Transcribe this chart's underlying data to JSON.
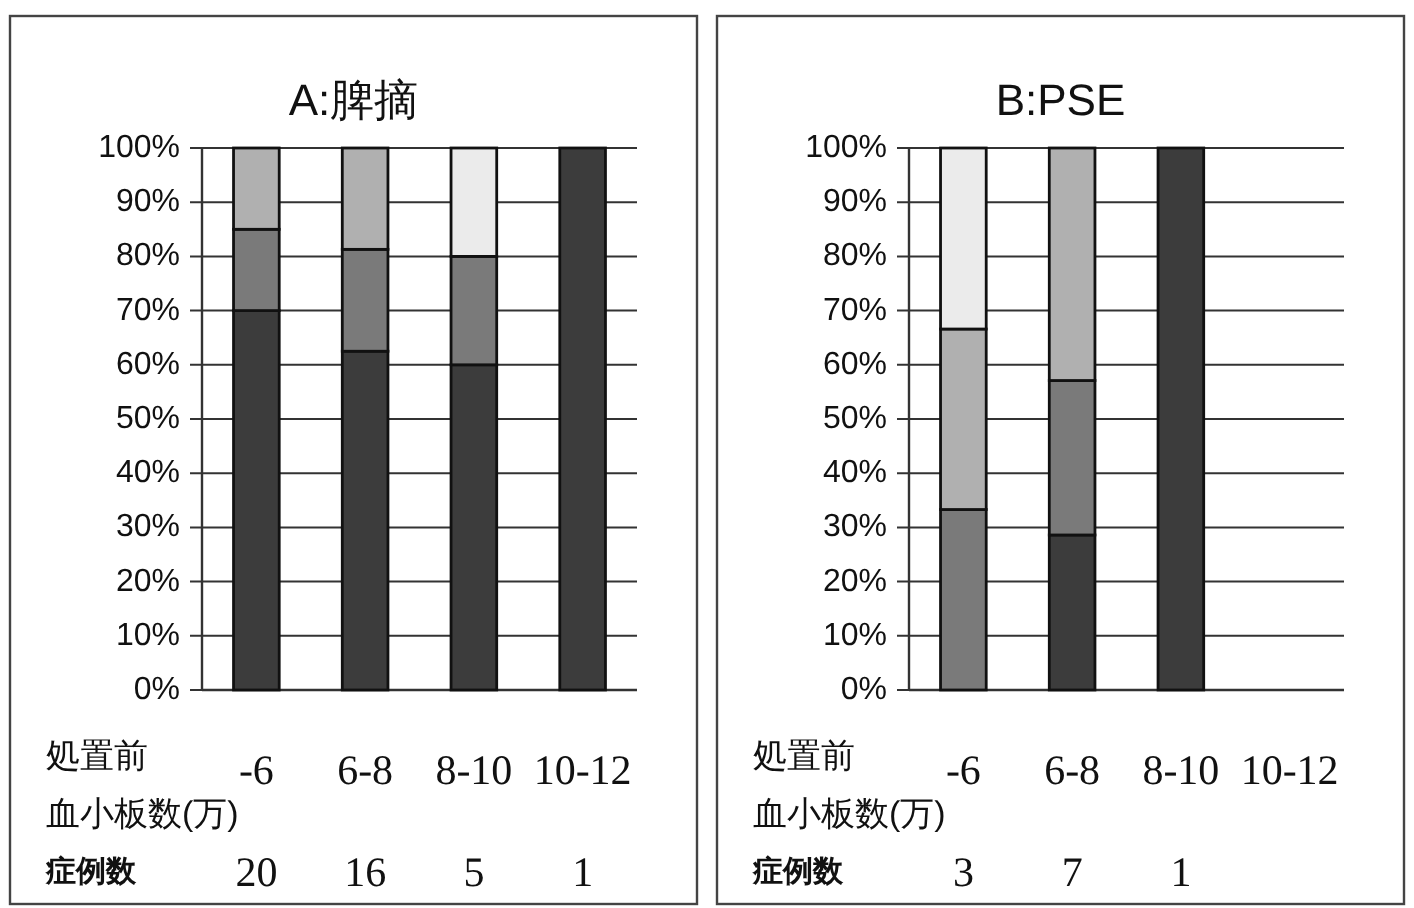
{
  "chart_data": [
    {
      "type": "bar",
      "title": "A:脾摘",
      "xlabel": "処置前血小板数(万)",
      "categories": [
        "-6",
        "6-8",
        "8-10",
        "10-12"
      ],
      "stacked": true,
      "series": [
        {
          "values": [
            70,
            62.5,
            60,
            100
          ],
          "colors": [
            "#3c3c3c",
            "#3c3c3c",
            "#3c3c3c",
            "#3c3c3c"
          ]
        },
        {
          "values": [
            15,
            18.8,
            20,
            null
          ],
          "colors": [
            "#7a7a7a",
            "#7a7a7a",
            "#7a7a7a",
            null
          ]
        },
        {
          "values": [
            15,
            18.7,
            20,
            null
          ],
          "colors": [
            "#b0b0b0",
            "#b0b0b0",
            "#ebebeb",
            null
          ]
        }
      ],
      "ylim": [
        0,
        100
      ],
      "yticks": [
        {
          "value": 0,
          "label": "0%"
        },
        {
          "value": 10,
          "label": "10%"
        },
        {
          "value": 20,
          "label": "20%"
        },
        {
          "value": 30,
          "label": "30%"
        },
        {
          "value": 40,
          "label": "40%"
        },
        {
          "value": 50,
          "label": "50%"
        },
        {
          "value": 60,
          "label": "60%"
        },
        {
          "value": 70,
          "label": "70%"
        },
        {
          "value": 80,
          "label": "80%"
        },
        {
          "value": 90,
          "label": "90%"
        },
        {
          "value": 100,
          "label": "100%"
        }
      ],
      "grid": "y",
      "annotations": [
        "症例数",
        "20",
        "16",
        "5",
        "1"
      ]
    },
    {
      "type": "bar",
      "title": "B:PSE",
      "xlabel": "処置前血小板数(万)",
      "categories": [
        "-6",
        "6-8",
        "8-10",
        "10-12"
      ],
      "stacked": true,
      "series": [
        {
          "values": [
            33.3,
            28.6,
            100,
            null
          ],
          "colors": [
            "#7a7a7a",
            "#3c3c3c",
            "#3c3c3c",
            null
          ]
        },
        {
          "values": [
            33.3,
            28.5,
            null,
            null
          ],
          "colors": [
            "#b0b0b0",
            "#7a7a7a",
            null,
            null
          ]
        },
        {
          "values": [
            33.4,
            42.9,
            null,
            null
          ],
          "colors": [
            "#ebebeb",
            "#b0b0b0",
            null,
            null
          ]
        }
      ],
      "ylim": [
        0,
        100
      ],
      "yticks": [
        {
          "value": 0,
          "label": "0%"
        },
        {
          "value": 10,
          "label": "10%"
        },
        {
          "value": 20,
          "label": "20%"
        },
        {
          "value": 30,
          "label": "30%"
        },
        {
          "value": 40,
          "label": "40%"
        },
        {
          "value": 50,
          "label": "50%"
        },
        {
          "value": 60,
          "label": "60%"
        },
        {
          "value": 70,
          "label": "70%"
        },
        {
          "value": 80,
          "label": "80%"
        },
        {
          "value": 90,
          "label": "90%"
        },
        {
          "value": 100,
          "label": "100%"
        }
      ],
      "grid": "y",
      "annotations": [
        "症例数",
        "3",
        "7",
        "1"
      ]
    }
  ]
}
